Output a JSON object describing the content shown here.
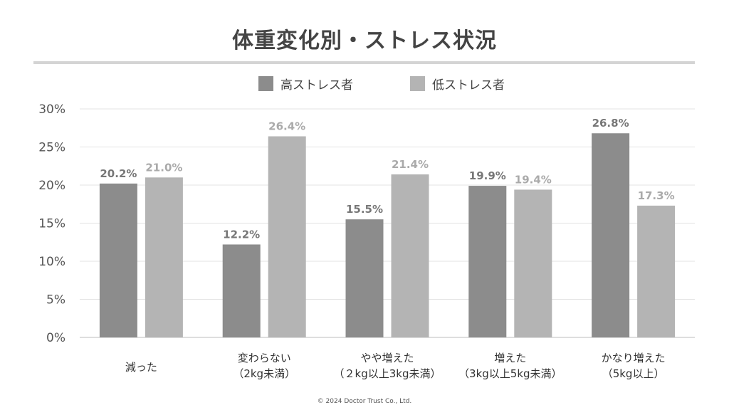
{
  "chart_data": {
    "type": "bar",
    "title": "体重変化別・ストレス状況",
    "categories": [
      [
        "減った"
      ],
      [
        "変わらない",
        "（2kg未満）"
      ],
      [
        "やや増えた",
        "（２kg以上3kg未満）"
      ],
      [
        "増えた",
        "（3kg以上5kg未満）"
      ],
      [
        "かなり増えた",
        "（5kg以上）"
      ]
    ],
    "series": [
      {
        "name": "高ストレス者",
        "color": "#8c8c8c",
        "label_color": "#777777",
        "values": [
          20.2,
          12.2,
          15.5,
          19.9,
          26.8
        ]
      },
      {
        "name": "低ストレス者",
        "color": "#b4b4b4",
        "label_color": "#aaaaaa",
        "values": [
          21.0,
          26.4,
          21.4,
          19.4,
          17.3
        ]
      }
    ],
    "value_suffix": "%",
    "yticks": [
      "0%",
      "5%",
      "10%",
      "15%",
      "20%",
      "25%",
      "30%"
    ],
    "ylim": [
      0,
      30
    ],
    "grid": true,
    "legend_position": "top-center",
    "xlabel": "",
    "ylabel": ""
  },
  "copyright": "©  2024 Doctor Trust Co., Ltd."
}
